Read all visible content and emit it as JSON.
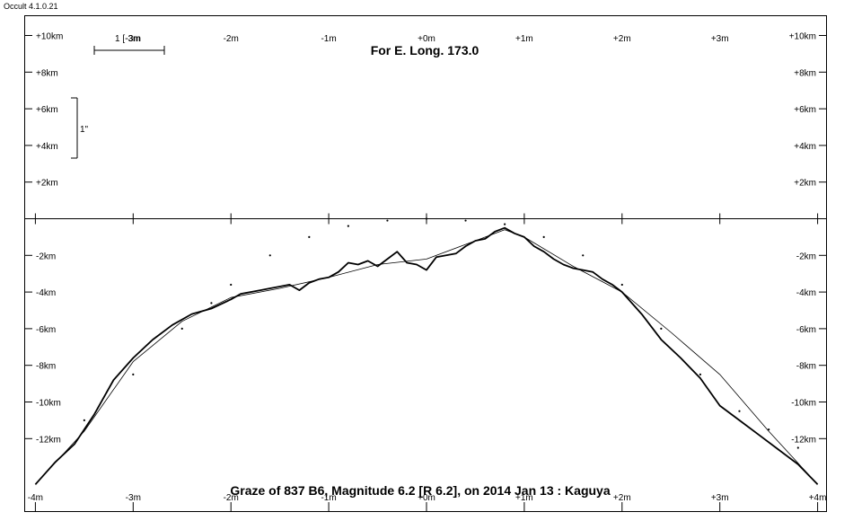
{
  "app": {
    "version": "Occult 4.1.0.21"
  },
  "chart_data": {
    "type": "line",
    "title": "Graze of  837 B6,  Magnitude 6.2 [R 6.2],  on 2014 Jan 13  :  Kaguya",
    "subtitle": "For E. Long. 173.0",
    "x_ticks": [
      "-4m",
      "-3m",
      "-2m",
      "-1m",
      "+0m",
      "+1m",
      "+2m",
      "+3m",
      "+4m"
    ],
    "x_tick_values": [
      -4,
      -3,
      -2,
      -1,
      0,
      1,
      2,
      3,
      4
    ],
    "y_ticks_upper": [
      "+10km",
      "+8km",
      "+6km",
      "+4km",
      "+2km"
    ],
    "y_ticks_upper_values": [
      10,
      8,
      6,
      4,
      2
    ],
    "y_ticks_lower": [
      "-2km",
      "-4km",
      "-6km",
      "-8km",
      "-10km",
      "-12km"
    ],
    "y_ticks_lower_values": [
      -2,
      -4,
      -6,
      -8,
      -10,
      -12
    ],
    "xlim": [
      -4.1,
      4.1
    ],
    "ylim": [
      -14.6,
      10.0
    ],
    "scale_bars": {
      "time": "1 [-3m",
      "arc": "1\""
    },
    "series": [
      {
        "style": "thick",
        "x": [
          -4.0,
          -3.8,
          -3.6,
          -3.4,
          -3.2,
          -3.0,
          -2.8,
          -2.6,
          -2.4,
          -2.2,
          -2.0,
          -1.9,
          -1.8,
          -1.7,
          -1.6,
          -1.5,
          -1.4,
          -1.3,
          -1.2,
          -1.1,
          -1.0,
          -0.9,
          -0.8,
          -0.7,
          -0.6,
          -0.5,
          -0.4,
          -0.3,
          -0.2,
          -0.1,
          0.0,
          0.1,
          0.2,
          0.3,
          0.4,
          0.5,
          0.6,
          0.7,
          0.8,
          0.9,
          1.0,
          1.1,
          1.2,
          1.3,
          1.4,
          1.5,
          1.6,
          1.7,
          1.8,
          1.9,
          2.0,
          2.2,
          2.4,
          2.6,
          2.8,
          3.0,
          3.2,
          3.4,
          3.6,
          3.8,
          4.0
        ],
        "y": [
          -14.5,
          -13.3,
          -12.3,
          -10.7,
          -8.8,
          -7.6,
          -6.6,
          -5.8,
          -5.2,
          -4.9,
          -4.4,
          -4.1,
          -4.0,
          -3.9,
          -3.8,
          -3.7,
          -3.6,
          -3.9,
          -3.5,
          -3.3,
          -3.2,
          -2.9,
          -2.4,
          -2.5,
          -2.3,
          -2.6,
          -2.2,
          -1.8,
          -2.4,
          -2.5,
          -2.8,
          -2.1,
          -2.0,
          -1.9,
          -1.5,
          -1.2,
          -1.1,
          -0.7,
          -0.5,
          -0.8,
          -1.0,
          -1.5,
          -1.8,
          -2.2,
          -2.5,
          -2.7,
          -2.8,
          -2.9,
          -3.3,
          -3.6,
          -4.0,
          -5.2,
          -6.6,
          -7.6,
          -8.7,
          -10.2,
          -11.0,
          -11.8,
          -12.6,
          -13.4,
          -14.5
        ]
      },
      {
        "style": "thin",
        "x": [
          -4.0,
          -3.5,
          -3.0,
          -2.5,
          -2.0,
          -1.5,
          -1.0,
          -0.5,
          0.0,
          0.5,
          0.8,
          1.0,
          1.5,
          2.0,
          2.5,
          3.0,
          3.5,
          4.0
        ],
        "y": [
          -14.5,
          -11.6,
          -7.8,
          -5.6,
          -4.3,
          -3.8,
          -3.2,
          -2.5,
          -2.2,
          -1.2,
          -0.6,
          -1.0,
          -2.6,
          -4.0,
          -6.2,
          -8.5,
          -11.6,
          -14.5
        ]
      },
      {
        "style": "dots",
        "x": [
          -3.5,
          -3.0,
          -2.5,
          -2.2,
          -2.0,
          -1.6,
          -1.2,
          -0.8,
          -0.4,
          0.0,
          0.4,
          0.8,
          1.2,
          1.6,
          2.0,
          2.4,
          2.8,
          3.2,
          3.5,
          3.8
        ],
        "y": [
          -11.0,
          -8.5,
          -6.0,
          -4.6,
          -3.6,
          -2.0,
          -1.0,
          -0.4,
          -0.1,
          0.0,
          -0.1,
          -0.3,
          -1.0,
          -2.0,
          -3.6,
          -6.0,
          -8.5,
          -10.5,
          -11.5,
          -12.5
        ]
      }
    ]
  }
}
